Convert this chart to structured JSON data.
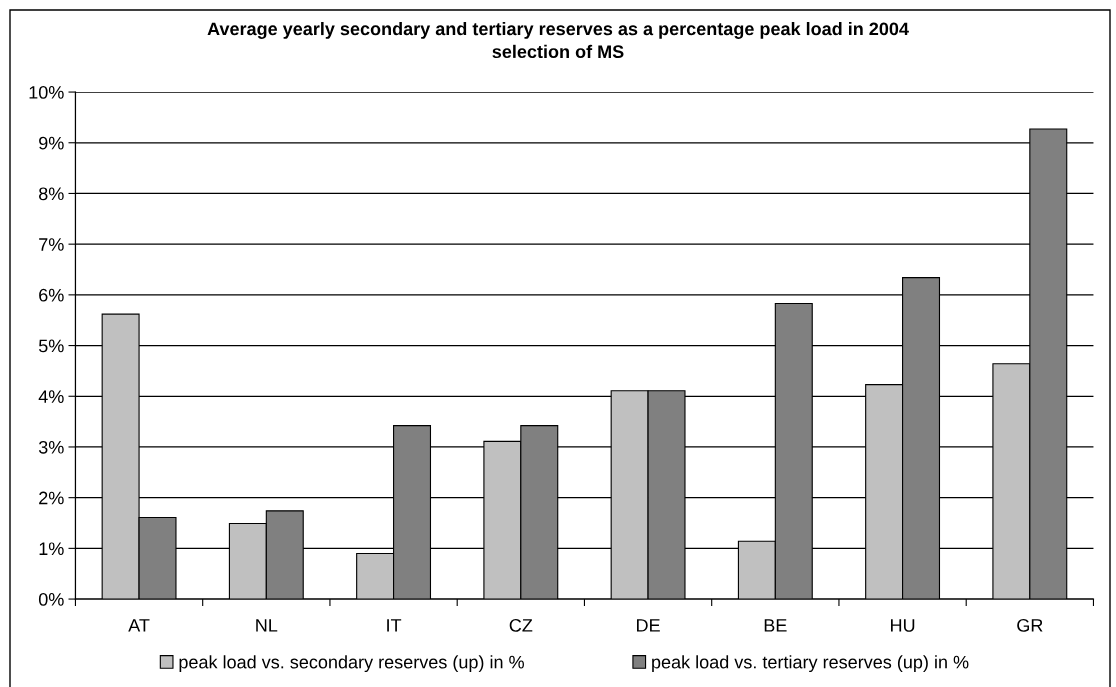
{
  "chart_data": {
    "type": "bar",
    "title": "Average yearly secondary and tertiary reserves as a percentage peak load in 2004\nselection of MS",
    "categories": [
      "AT",
      "NL",
      "IT",
      "CZ",
      "DE",
      "BE",
      "HU",
      "GR"
    ],
    "series": [
      {
        "name": "peak load vs. secondary reserves (up) in %",
        "color": "#c0c0c0",
        "values": [
          5.62,
          1.49,
          0.9,
          3.11,
          4.11,
          1.14,
          4.23,
          4.64
        ]
      },
      {
        "name": "peak load vs. tertiary reserves (up) in %",
        "color": "#808080",
        "values": [
          1.61,
          1.74,
          3.42,
          3.42,
          4.11,
          5.83,
          6.34,
          9.27
        ]
      }
    ],
    "ylim": [
      0,
      10
    ],
    "yticks": [
      {
        "value": 0,
        "label": "0%"
      },
      {
        "value": 1,
        "label": "1%"
      },
      {
        "value": 2,
        "label": "2%"
      },
      {
        "value": 3,
        "label": "3%"
      },
      {
        "value": 4,
        "label": "4%"
      },
      {
        "value": 5,
        "label": "5%"
      },
      {
        "value": 6,
        "label": "6%"
      },
      {
        "value": 7,
        "label": "7%"
      },
      {
        "value": 8,
        "label": "8%"
      },
      {
        "value": 9,
        "label": "9%"
      },
      {
        "value": 10,
        "label": "10%"
      }
    ],
    "grid": "y",
    "legend": "bottom"
  }
}
